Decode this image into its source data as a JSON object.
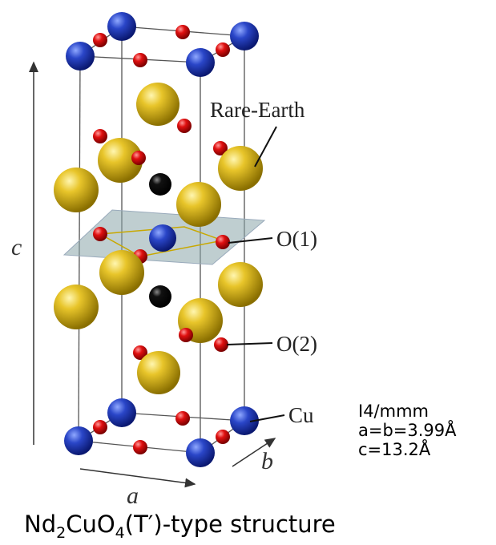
{
  "labels": {
    "rare_earth": "Rare-Earth",
    "o1": "O(1)",
    "o2": "O(2)",
    "cu": "Cu"
  },
  "axes": {
    "a": "a",
    "b": "b",
    "c": "c"
  },
  "lattice": {
    "space_group": "I4/mmm",
    "ab": "a=b=3.99Å",
    "c": "c=13.2Å"
  },
  "caption": {
    "parts": [
      "Nd",
      "2",
      "CuO",
      "4",
      "(T′)-type structure"
    ]
  }
}
